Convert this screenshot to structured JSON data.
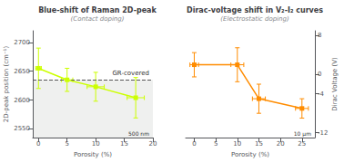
{
  "chart_data": [
    {
      "type": "line",
      "title": "Blue-shift of Raman 2D-peak",
      "subtitle": "(Contact doping)",
      "xlabel": "Porosity (%)",
      "ylabel": "2D-peak position (cm⁻¹)",
      "x": [
        0,
        5,
        10,
        17
      ],
      "values": [
        2655,
        2635,
        2623,
        2604
      ],
      "yerr": [
        35,
        20,
        25,
        35
      ],
      "xerr": [
        0.5,
        1.0,
        1.5,
        1.5
      ],
      "color": "#ccff00",
      "marker": "square",
      "line_style": "solid",
      "xlim": [
        -1,
        20
      ],
      "ylim": [
        2535,
        2720
      ],
      "xticks": [
        0,
        5,
        10,
        15,
        20
      ],
      "yticks": [
        2550,
        2600,
        2650,
        2700
      ],
      "grid": false,
      "annotations": [
        {
          "text": "GR-covered",
          "y": 2635
        },
        {
          "text": "500 nm"
        }
      ]
    },
    {
      "type": "line",
      "title": "Dirac-voltage shift in V₂-I₂ curves",
      "subtitle": "(Electrostatic doping)",
      "xlabel": "Porosity (%)",
      "ylabel": "Dirac Voltage (V)",
      "x": [
        0,
        10,
        15,
        25
      ],
      "values": [
        2,
        2,
        -5,
        -7
      ],
      "yerr": [
        2.5,
        3.5,
        3.0,
        2.0
      ],
      "xerr": [
        1.0,
        1.5,
        1.5,
        1.5
      ],
      "color": "#ff8c00",
      "marker": "square",
      "line_style": "solid",
      "xlim": [
        -2,
        28
      ],
      "ylim": [
        -13,
        9
      ],
      "xticks": [
        0,
        5,
        10,
        15,
        20,
        25
      ],
      "yticks": [
        8,
        0,
        -4,
        -12
      ],
      "grid": false,
      "annotations": [
        {
          "text": "10 μm"
        }
      ]
    }
  ]
}
